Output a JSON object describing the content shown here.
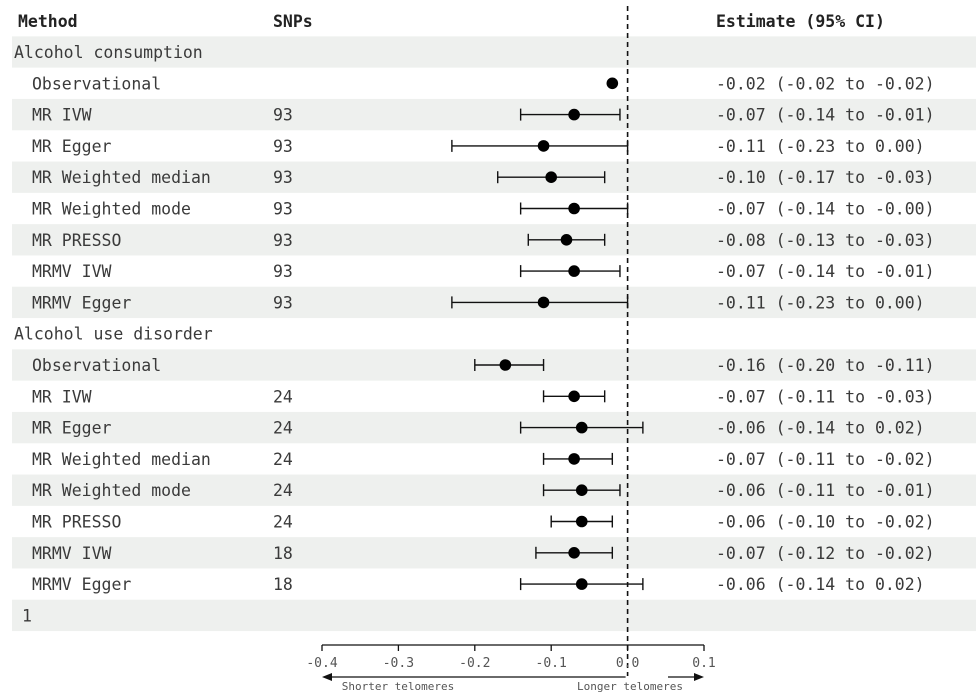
{
  "chart_data": {
    "type": "forest",
    "headers": {
      "method": "Method",
      "snps": "SNPs",
      "estimate": "Estimate (95% CI)"
    },
    "groups": [
      {
        "title": "Alcohol consumption",
        "rows": [
          {
            "method": "Observational",
            "snps": "",
            "est": -0.02,
            "lo": -0.02,
            "hi": -0.02,
            "label": "-0.02 (-0.02 to -0.02)"
          },
          {
            "method": "MR IVW",
            "snps": "93",
            "est": -0.07,
            "lo": -0.14,
            "hi": -0.01,
            "label": "-0.07 (-0.14 to -0.01)"
          },
          {
            "method": "MR Egger",
            "snps": "93",
            "est": -0.11,
            "lo": -0.23,
            "hi": 0.0,
            "label": "-0.11 (-0.23 to 0.00)"
          },
          {
            "method": "MR Weighted median",
            "snps": "93",
            "est": -0.1,
            "lo": -0.17,
            "hi": -0.03,
            "label": "-0.10 (-0.17 to -0.03)"
          },
          {
            "method": "MR Weighted mode",
            "snps": "93",
            "est": -0.07,
            "lo": -0.14,
            "hi": -0.0,
            "label": "-0.07 (-0.14 to -0.00)"
          },
          {
            "method": "MR PRESSO",
            "snps": "93",
            "est": -0.08,
            "lo": -0.13,
            "hi": -0.03,
            "label": "-0.08 (-0.13 to -0.03)"
          },
          {
            "method": "MRMV IVW",
            "snps": "93",
            "est": -0.07,
            "lo": -0.14,
            "hi": -0.01,
            "label": "-0.07 (-0.14 to -0.01)"
          },
          {
            "method": "MRMV Egger",
            "snps": "93",
            "est": -0.11,
            "lo": -0.23,
            "hi": 0.0,
            "label": "-0.11 (-0.23 to 0.00)"
          }
        ]
      },
      {
        "title": "Alcohol use disorder",
        "rows": [
          {
            "method": "Observational",
            "snps": "",
            "est": -0.16,
            "lo": -0.2,
            "hi": -0.11,
            "label": "-0.16 (-0.20 to -0.11)"
          },
          {
            "method": "MR IVW",
            "snps": "24",
            "est": -0.07,
            "lo": -0.11,
            "hi": -0.03,
            "label": "-0.07 (-0.11 to -0.03)"
          },
          {
            "method": "MR Egger",
            "snps": "24",
            "est": -0.06,
            "lo": -0.14,
            "hi": 0.02,
            "label": "-0.06 (-0.14 to 0.02)"
          },
          {
            "method": "MR Weighted median",
            "snps": "24",
            "est": -0.07,
            "lo": -0.11,
            "hi": -0.02,
            "label": "-0.07 (-0.11 to -0.02)"
          },
          {
            "method": "MR Weighted mode",
            "snps": "24",
            "est": -0.06,
            "lo": -0.11,
            "hi": -0.01,
            "label": "-0.06 (-0.11 to -0.01)"
          },
          {
            "method": "MR PRESSO",
            "snps": "24",
            "est": -0.06,
            "lo": -0.1,
            "hi": -0.02,
            "label": "-0.06 (-0.10 to -0.02)"
          },
          {
            "method": "MRMV IVW",
            "snps": "18",
            "est": -0.07,
            "lo": -0.12,
            "hi": -0.02,
            "label": "-0.07 (-0.12 to -0.02)"
          },
          {
            "method": "MRMV Egger",
            "snps": "18",
            "est": -0.06,
            "lo": -0.14,
            "hi": 0.02,
            "label": "-0.06 (-0.14 to 0.02)"
          }
        ]
      }
    ],
    "footer_row": "1",
    "x_axis": {
      "min": -0.4,
      "max": 0.1,
      "ticks": [
        -0.4,
        -0.3,
        -0.2,
        -0.1,
        0.0,
        0.1
      ],
      "tick_labels": [
        "-0.4",
        "-0.3",
        "-0.2",
        "-0.1",
        "0.0",
        "0.1"
      ],
      "reference_line": 0.0,
      "left_label": "Shorter telomeres",
      "right_label": "Longer telomeres"
    },
    "stripe_color": "#eef0ee",
    "marker_color": "#000000"
  }
}
